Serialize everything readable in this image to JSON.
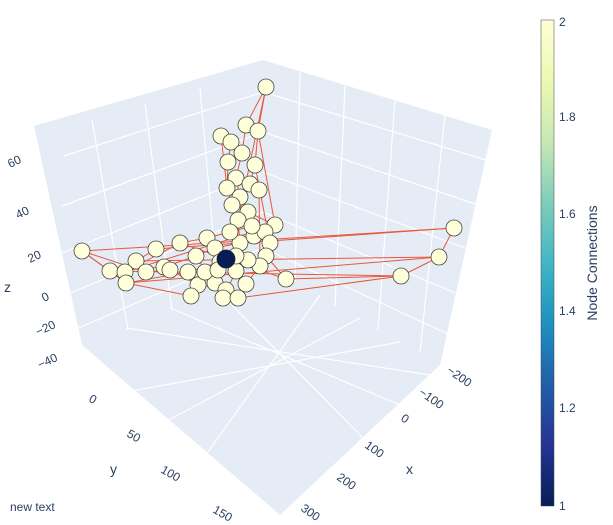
{
  "chart_data": {
    "type": "scatter3d",
    "annotation": "new text",
    "axes": {
      "x": {
        "title": "x",
        "ticks": [
          "−200",
          "−100",
          "0",
          "100",
          "200",
          "300"
        ]
      },
      "y": {
        "title": "y",
        "ticks": [
          "0",
          "50",
          "100",
          "150"
        ]
      },
      "z": {
        "title": "z",
        "ticks": [
          "−40",
          "−20",
          "0",
          "20",
          "40",
          "60"
        ]
      }
    },
    "colorbar": {
      "title": "Node Connections",
      "ticks": [
        "1",
        "1.2",
        "1.4",
        "1.6",
        "1.8",
        "2"
      ],
      "range": [
        1,
        2
      ],
      "colorscale": "YlGnBu"
    },
    "colors": {
      "edge": "#e8583a",
      "node_high": "#ffffd9",
      "node_low": "#081d58",
      "pane": "#e5ecf6",
      "grid": "#ffffff"
    }
  }
}
